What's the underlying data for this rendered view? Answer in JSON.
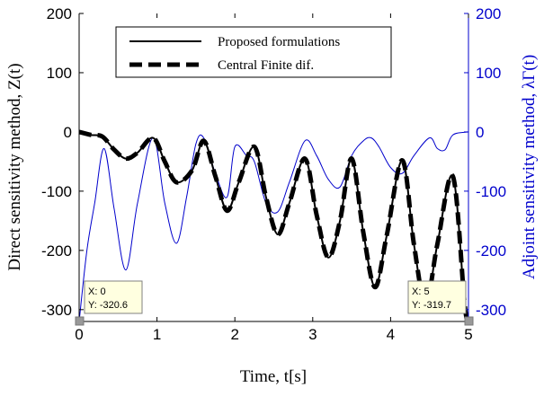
{
  "chart_data": {
    "type": "line",
    "xlabel": "Time, t[s]",
    "ylabel_left": "Direct sensitivity method, Z(t)",
    "ylabel_right": "Adjoint sensitivity method, λΓ(t)",
    "xlim": [
      0,
      5
    ],
    "ylim_left": [
      -320,
      200
    ],
    "ylim_right": [
      -320,
      200
    ],
    "xticks": [
      0,
      1,
      2,
      3,
      4,
      5
    ],
    "yticks_left": [
      200,
      100,
      0,
      -100,
      -200,
      -300
    ],
    "yticks_right": [
      200,
      100,
      0,
      -100,
      -200,
      -300
    ],
    "legend": {
      "position": "top-center",
      "entries": [
        "Proposed formulations",
        "Central Finite dif."
      ]
    },
    "colors": {
      "direct": "#000000",
      "finite": "#000000",
      "adjoint": "#0000cc"
    },
    "series": [
      {
        "name": "Proposed formulations",
        "axis": "left",
        "style": "solid",
        "x": [
          0,
          0.15,
          0.3,
          0.45,
          0.6,
          0.75,
          0.95,
          1.1,
          1.25,
          1.45,
          1.6,
          1.75,
          1.9,
          2.05,
          2.25,
          2.4,
          2.55,
          2.7,
          2.9,
          3.05,
          3.2,
          3.35,
          3.5,
          3.65,
          3.8,
          3.95,
          4.15,
          4.3,
          4.45,
          4.6,
          4.8,
          4.95,
          5.0
        ],
        "y": [
          0,
          -5,
          -8,
          -30,
          -45,
          -35,
          -10,
          -50,
          -85,
          -65,
          -15,
          -75,
          -133,
          -85,
          -25,
          -110,
          -173,
          -120,
          -45,
          -140,
          -212,
          -150,
          -45,
          -170,
          -262,
          -175,
          -48,
          -190,
          -292,
          -190,
          -75,
          -290,
          -320
        ]
      },
      {
        "name": "Central Finite dif.",
        "axis": "left",
        "style": "dashed",
        "x": [
          0,
          0.15,
          0.3,
          0.45,
          0.6,
          0.75,
          0.95,
          1.1,
          1.25,
          1.45,
          1.6,
          1.75,
          1.9,
          2.05,
          2.25,
          2.4,
          2.55,
          2.7,
          2.9,
          3.05,
          3.2,
          3.35,
          3.5,
          3.65,
          3.8,
          3.95,
          4.15,
          4.3,
          4.45,
          4.6,
          4.8,
          4.95,
          5.0
        ],
        "y": [
          0,
          -5,
          -8,
          -30,
          -45,
          -35,
          -10,
          -50,
          -85,
          -65,
          -15,
          -75,
          -133,
          -85,
          -25,
          -110,
          -173,
          -120,
          -45,
          -140,
          -212,
          -150,
          -45,
          -170,
          -262,
          -175,
          -48,
          -190,
          -292,
          -190,
          -75,
          -290,
          -320
        ]
      },
      {
        "name": "Adjoint",
        "axis": "right",
        "style": "solid-thin",
        "x": [
          0,
          0.1,
          0.2,
          0.32,
          0.45,
          0.6,
          0.75,
          0.95,
          1.1,
          1.25,
          1.38,
          1.5,
          1.6,
          1.75,
          1.9,
          2.0,
          2.15,
          2.25,
          2.4,
          2.55,
          2.7,
          2.9,
          3.05,
          3.2,
          3.35,
          3.5,
          3.65,
          3.75,
          3.85,
          4.0,
          4.15,
          4.3,
          4.5,
          4.6,
          4.7,
          4.8,
          5.0
        ],
        "y": [
          -320,
          -200,
          -120,
          -28,
          -130,
          -233,
          -120,
          -10,
          -120,
          -188,
          -110,
          -20,
          -10,
          -70,
          -110,
          -25,
          -40,
          -50,
          -120,
          -135,
          -85,
          -15,
          -40,
          -80,
          -93,
          -40,
          -15,
          -10,
          -25,
          -60,
          -70,
          -40,
          -10,
          -28,
          -30,
          -5,
          0
        ]
      }
    ],
    "datatips": [
      {
        "x_text": "X: 0",
        "y_text": "Y: -320.6",
        "x": 0,
        "y": -320.6
      },
      {
        "x_text": "X: 5",
        "y_text": "Y: -319.7",
        "x": 5,
        "y": -319.7
      }
    ]
  }
}
